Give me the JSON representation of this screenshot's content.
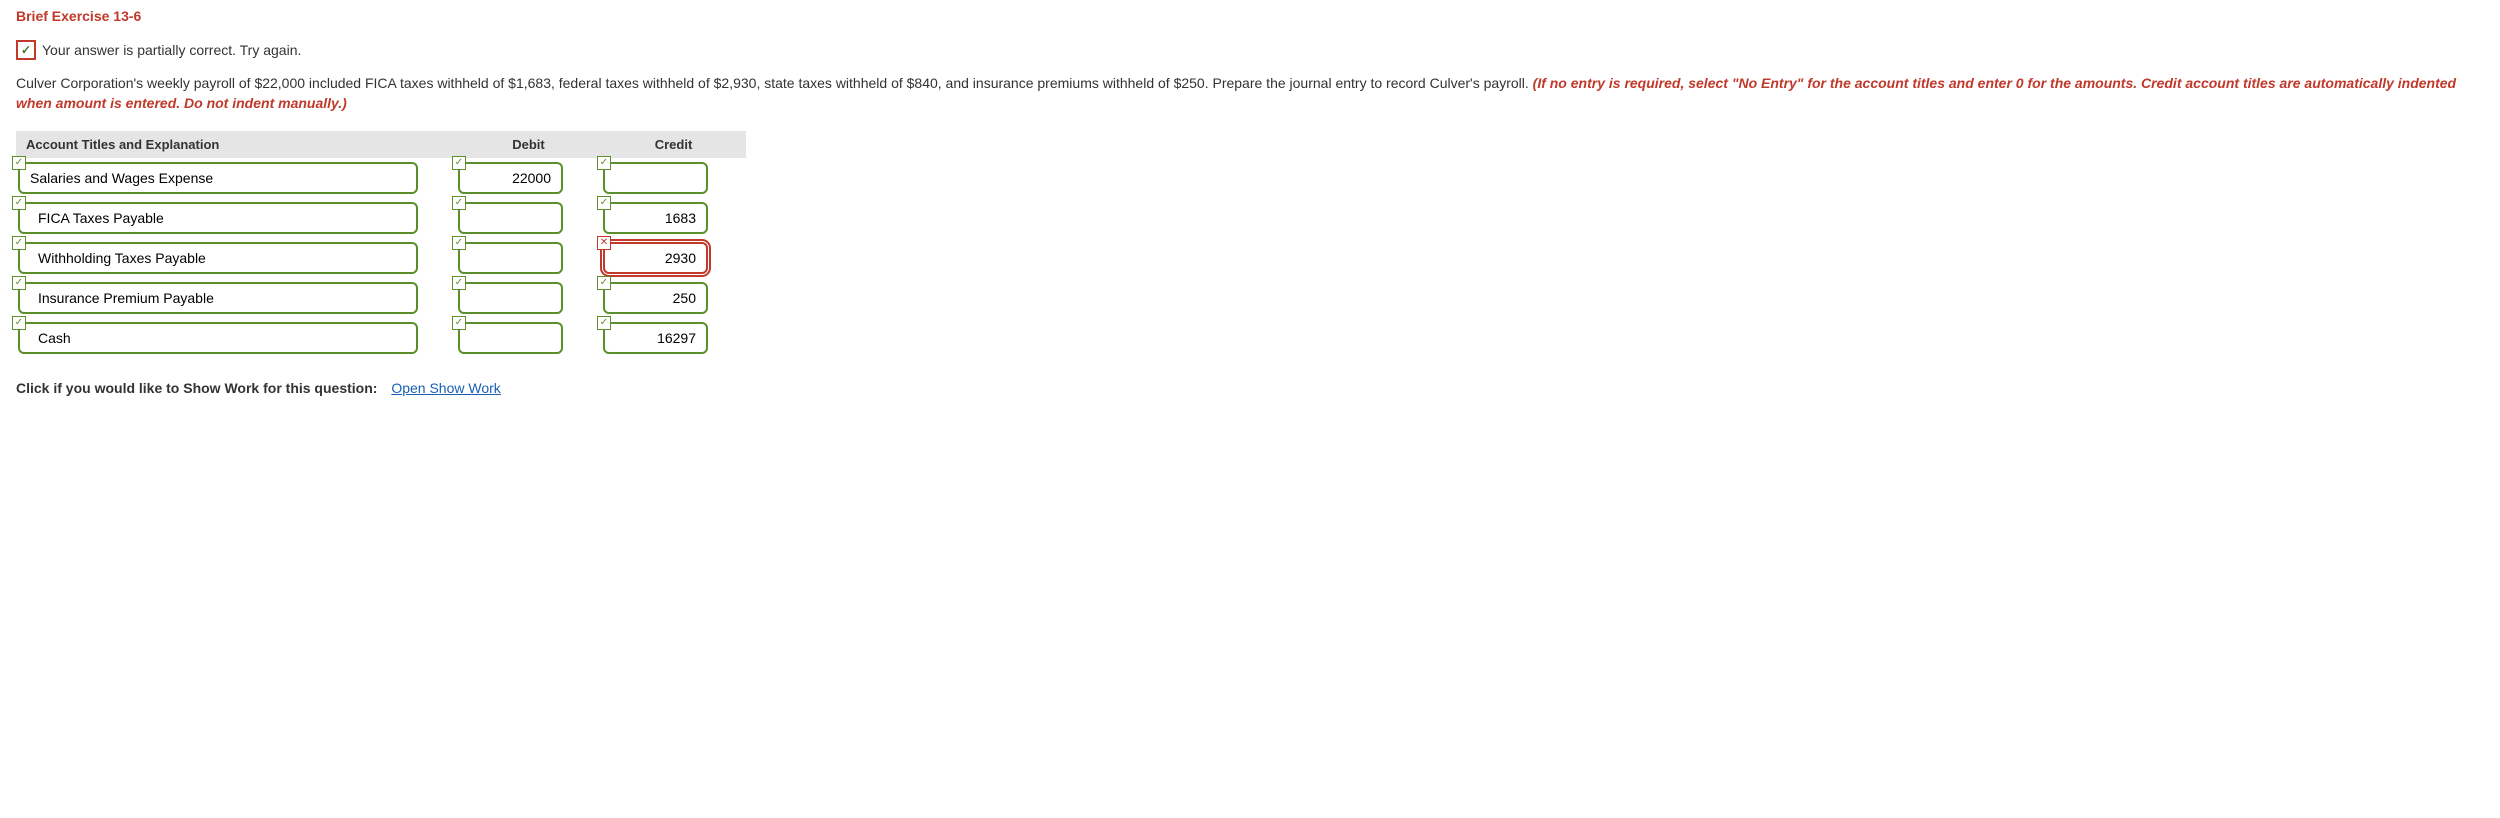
{
  "exercise_title": "Brief Exercise 13-6",
  "feedback": {
    "icon_glyph": "✓",
    "text": "Your answer is partially correct.  Try again."
  },
  "problem": {
    "text_part1": "Culver Corporation's weekly payroll of $22,000 included FICA taxes withheld of $1,683, federal taxes withheld of $2,930, state taxes withheld of $840, and insurance premiums withheld of $250. Prepare the journal entry to record Culver's payroll. ",
    "instruction_em": "(If no entry is required, select \"No Entry\" for the account titles and enter 0 for the amounts. Credit account titles are automatically indented when amount is entered. Do not indent manually.)"
  },
  "table": {
    "headers": {
      "account": "Account Titles and Explanation",
      "debit": "Debit",
      "credit": "Credit"
    },
    "rows": [
      {
        "account": {
          "value": "Salaries and Wages Expense",
          "status": "correct",
          "indent": false
        },
        "debit": {
          "value": "22000",
          "status": "correct"
        },
        "credit": {
          "value": "",
          "status": "correct"
        }
      },
      {
        "account": {
          "value": "FICA Taxes Payable",
          "status": "correct",
          "indent": true
        },
        "debit": {
          "value": "",
          "status": "correct"
        },
        "credit": {
          "value": "1683",
          "status": "correct"
        }
      },
      {
        "account": {
          "value": "Withholding Taxes Payable",
          "status": "correct",
          "indent": true
        },
        "debit": {
          "value": "",
          "status": "correct"
        },
        "credit": {
          "value": "2930",
          "status": "wrong"
        }
      },
      {
        "account": {
          "value": "Insurance Premium Payable",
          "status": "correct",
          "indent": true
        },
        "debit": {
          "value": "",
          "status": "correct"
        },
        "credit": {
          "value": "250",
          "status": "correct"
        }
      },
      {
        "account": {
          "value": "Cash",
          "status": "correct",
          "indent": true
        },
        "debit": {
          "value": "",
          "status": "correct"
        },
        "credit": {
          "value": "16297",
          "status": "correct"
        }
      }
    ]
  },
  "show_work": {
    "label": "Click if you would like to Show Work for this question:",
    "link": "Open Show Work"
  },
  "colors": {
    "accent_red": "#c0392b",
    "accent_green": "#5a8f29",
    "header_bg": "#e5e5e5",
    "link_color": "#1a5fb4"
  }
}
